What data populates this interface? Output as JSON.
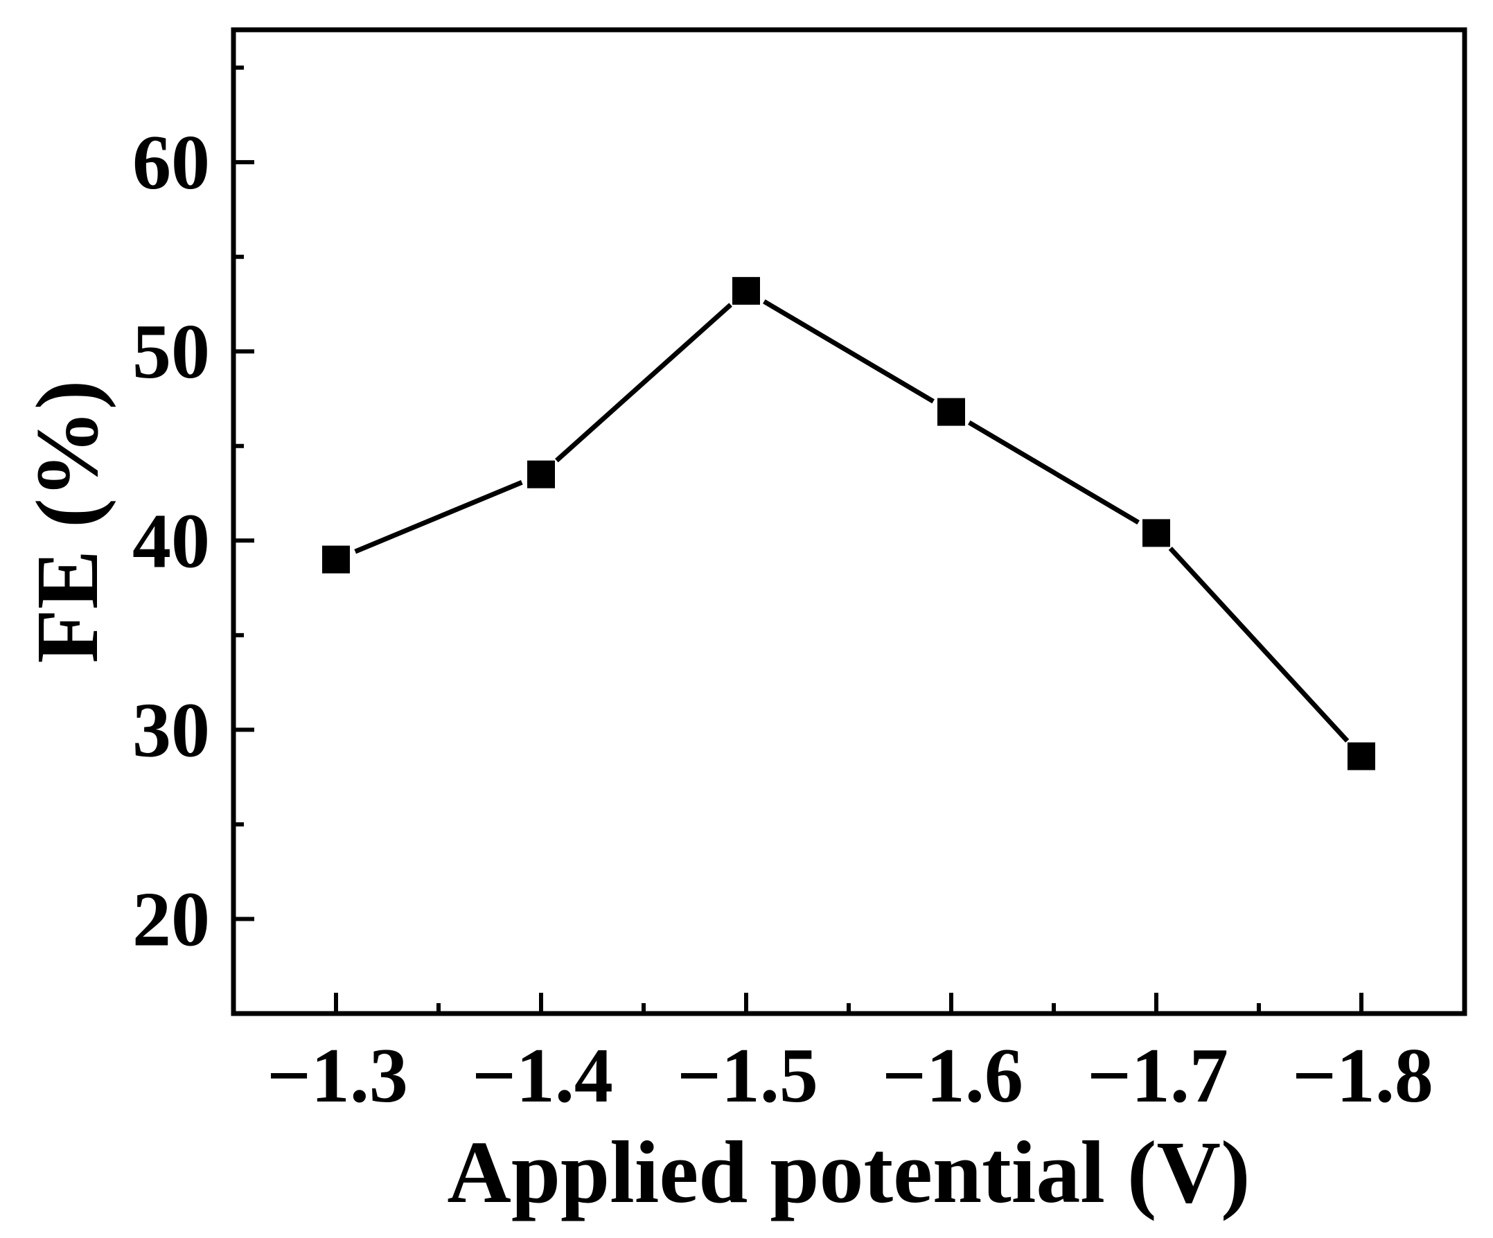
{
  "chart_data": {
    "type": "line",
    "title": "",
    "xlabel": "Applied potential (V)",
    "ylabel": "FE (%)",
    "x": [
      "−1.3",
      "−1.4",
      "−1.5",
      "−1.6",
      "−1.7",
      "−1.8"
    ],
    "x_values": [
      -1.3,
      -1.4,
      -1.5,
      -1.6,
      -1.7,
      -1.8
    ],
    "series": [
      {
        "marker": "square",
        "color": "#000000",
        "values": [
          39.0,
          43.5,
          53.2,
          46.8,
          40.4,
          28.6
        ]
      }
    ],
    "ylim": [
      15,
      67
    ],
    "yticks": [
      "20",
      "30",
      "40",
      "50",
      "60"
    ],
    "ytick_values": [
      20,
      30,
      40,
      50,
      60
    ],
    "y_minor_step": 5,
    "x_minor_ticks": true,
    "grid": false,
    "legend": "none"
  }
}
